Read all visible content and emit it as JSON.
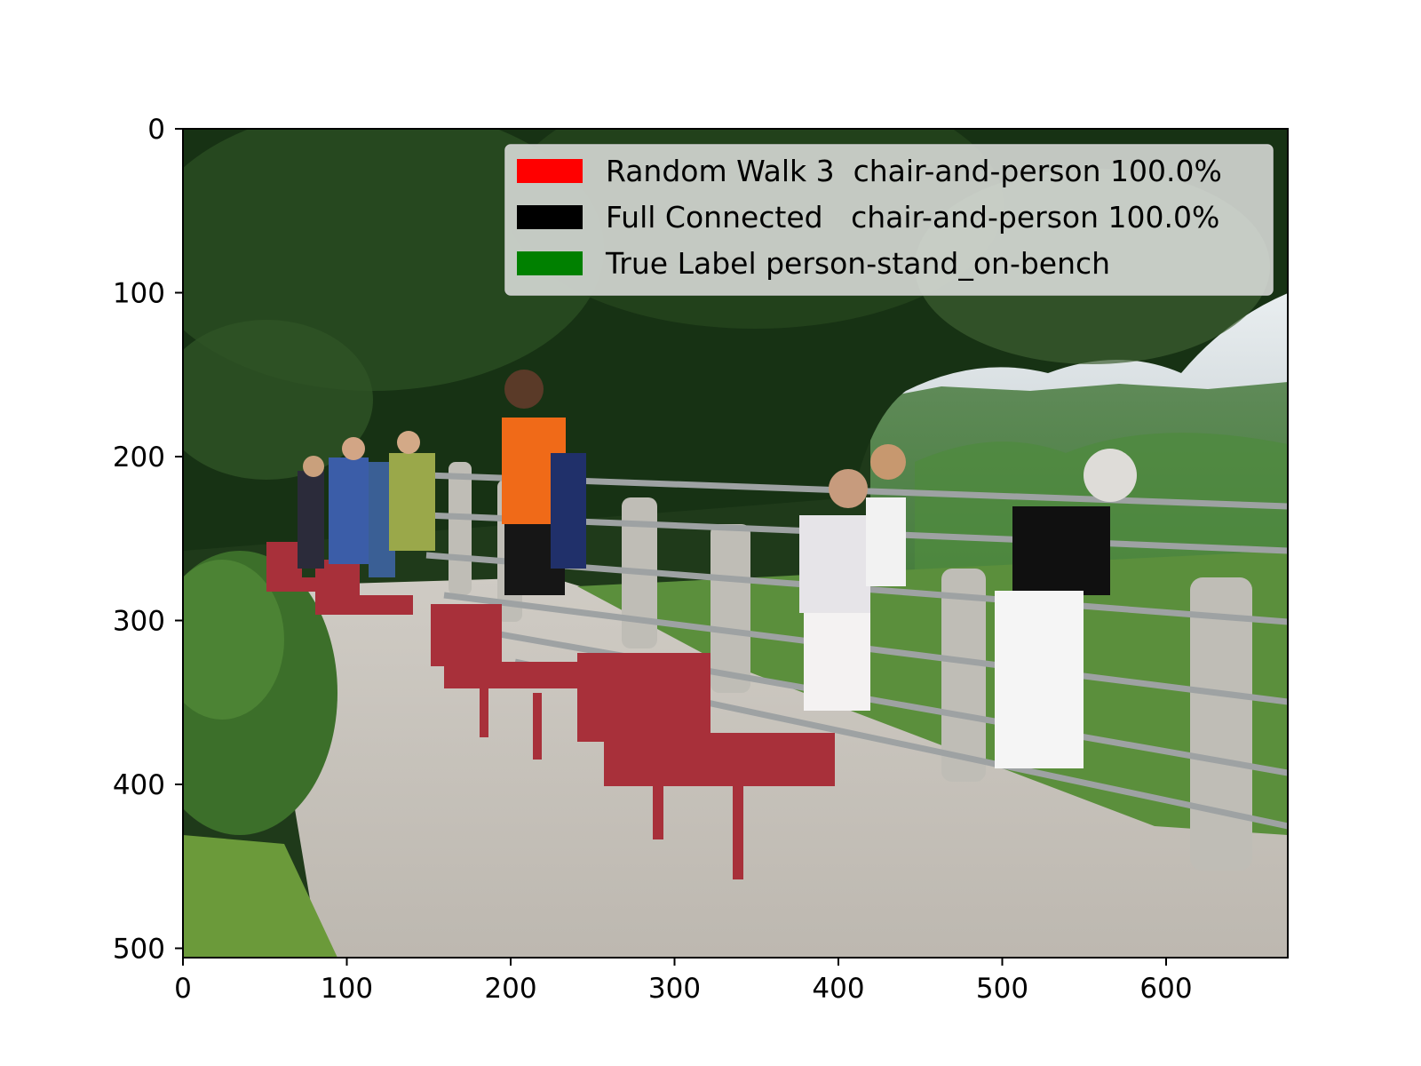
{
  "x_ticks": [
    "0",
    "100",
    "200",
    "300",
    "400",
    "500",
    "600"
  ],
  "y_ticks": [
    "0",
    "100",
    "200",
    "300",
    "400",
    "500"
  ],
  "legend": [
    {
      "color": "#ff0000",
      "label": "Random Walk 3  chair-and-person 100.0%"
    },
    {
      "color": "#000000",
      "label": "Full Connected   chair-and-person 100.0%"
    },
    {
      "color": "#008000",
      "label": "True Label person-stand_on-bench"
    }
  ],
  "colors": {
    "axes_frame": "#000000",
    "legend_background": "#e8e8e8"
  }
}
